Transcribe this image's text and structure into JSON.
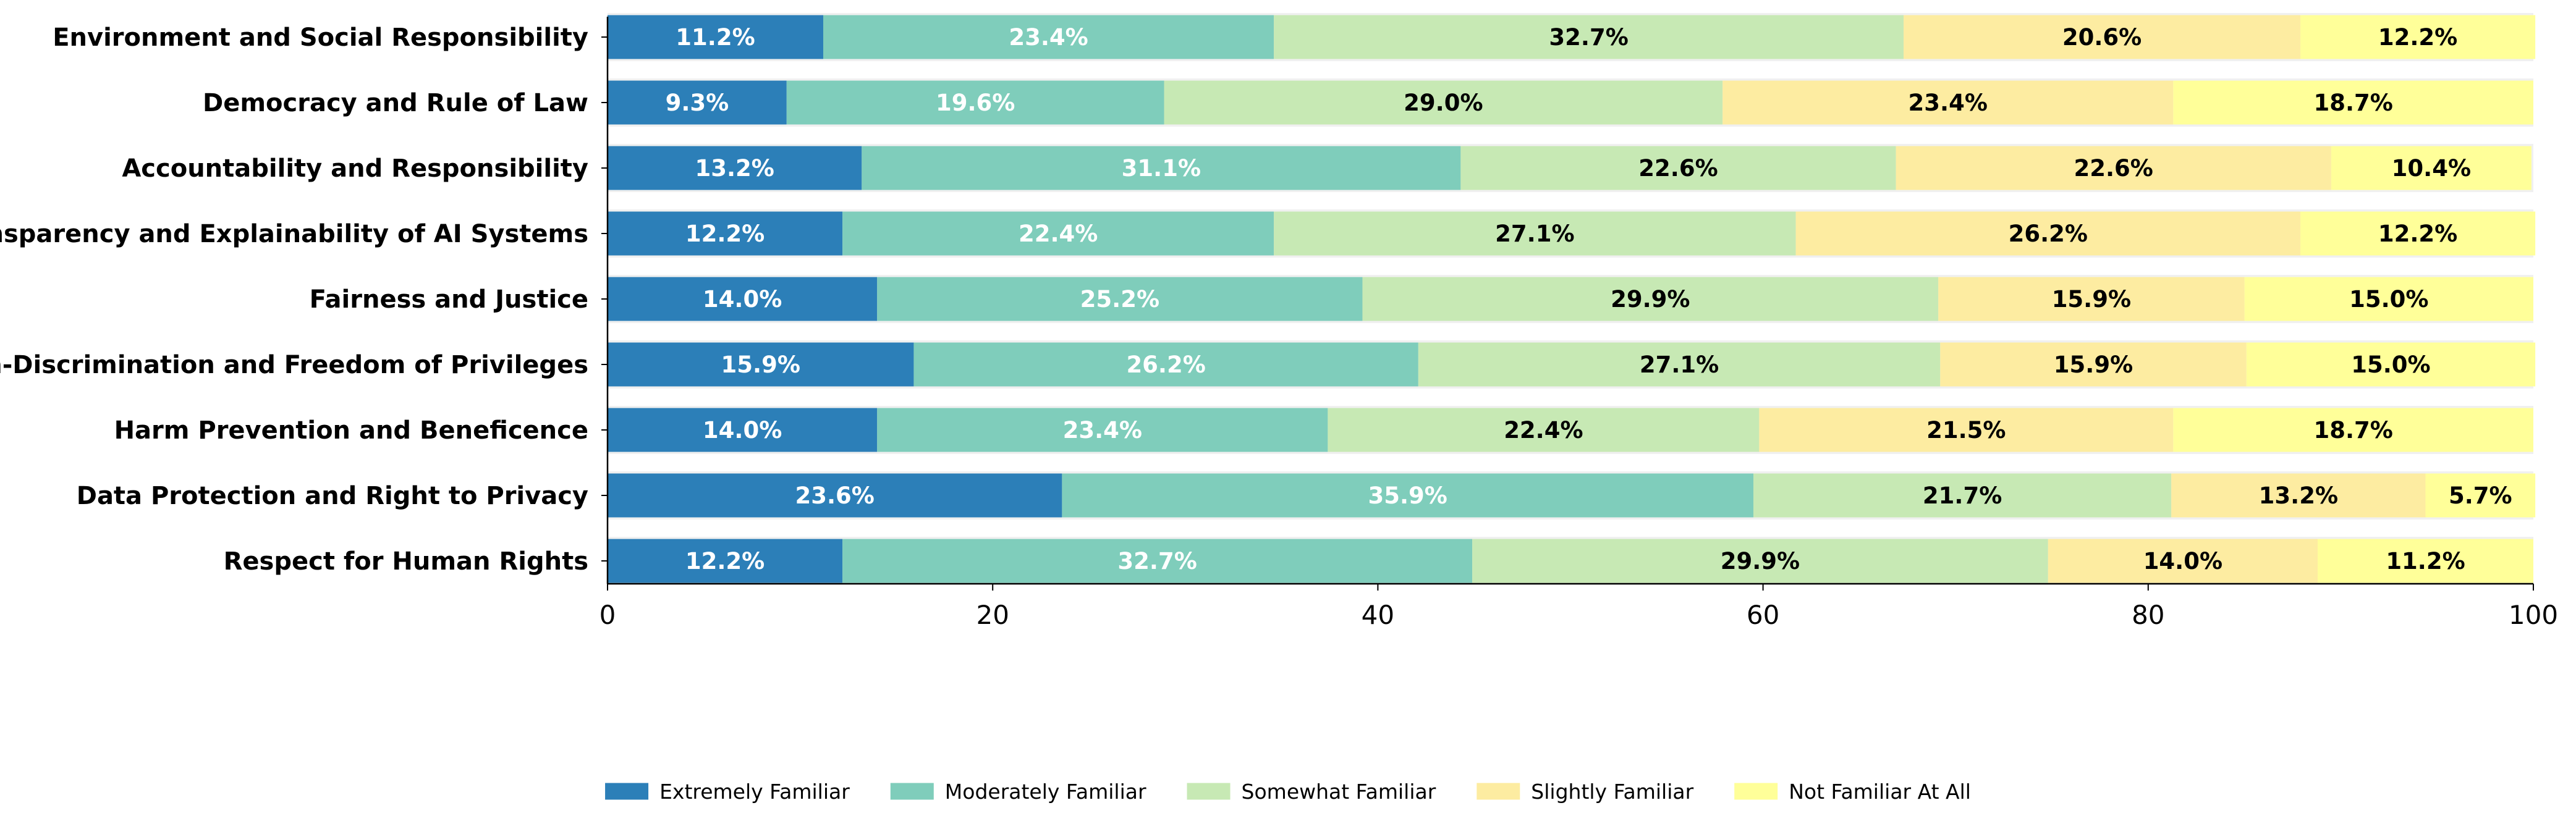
{
  "chart_data": {
    "type": "bar",
    "orientation": "horizontal",
    "stacked": true,
    "categories": [
      "Environment and Social Responsibility",
      "Democracy and Rule of Law",
      "Accountability and Responsibility",
      "Transparency and Explainability of AI Systems",
      "Fairness and Justice",
      "Non-Discrimination and Freedom of Privileges",
      "Harm Prevention and Beneficence",
      "Data Protection and Right to Privacy",
      "Respect for Human Rights"
    ],
    "series": [
      {
        "name": "Extremely Familiar",
        "color": "#2c7fb8",
        "label_color": "#ffffff",
        "values": [
          11.2,
          9.3,
          13.2,
          12.2,
          14.0,
          15.9,
          14.0,
          23.6,
          12.2
        ]
      },
      {
        "name": "Moderately Familiar",
        "color": "#7fcdbb",
        "label_color": "#ffffff",
        "values": [
          23.4,
          19.6,
          31.1,
          22.4,
          25.2,
          26.2,
          23.4,
          35.9,
          32.7
        ]
      },
      {
        "name": "Somewhat Familiar",
        "color": "#c7e9b4",
        "label_color": "#000000",
        "values": [
          32.7,
          29.0,
          22.6,
          27.1,
          29.9,
          27.1,
          22.4,
          21.7,
          29.9
        ]
      },
      {
        "name": "Slightly Familiar",
        "color": "#fdeca1",
        "label_color": "#000000",
        "values": [
          20.6,
          23.4,
          22.6,
          26.2,
          15.9,
          15.9,
          21.5,
          13.2,
          14.0
        ]
      },
      {
        "name": "Not Familiar At All",
        "color": "#ffff99",
        "label_color": "#000000",
        "values": [
          12.2,
          18.7,
          10.4,
          12.2,
          15.0,
          15.0,
          18.7,
          5.7,
          11.2
        ]
      }
    ],
    "xlim": [
      0,
      100
    ],
    "xticks": [
      0,
      20,
      40,
      60,
      80,
      100
    ],
    "band_color": "#f0f0f0",
    "legend_position": "bottom-center"
  }
}
